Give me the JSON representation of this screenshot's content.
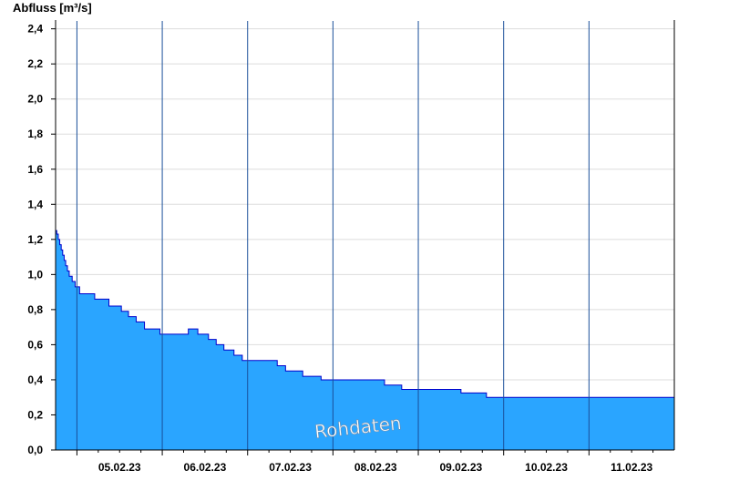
{
  "chart_data": {
    "type": "area",
    "ylabel": "Abfluss [m³/s]",
    "ylim": [
      0,
      2.45
    ],
    "y_ticks": [
      "0,0",
      "0,2",
      "0,4",
      "0,6",
      "0,8",
      "1,0",
      "1,2",
      "1,4",
      "1,6",
      "1,8",
      "2,0",
      "2,2",
      "2,4"
    ],
    "x_range": [
      "04.02.23 18:00",
      "11.02.23 24:00"
    ],
    "x_tick_labels": [
      "05.02.23",
      "06.02.23",
      "07.02.23",
      "08.02.23",
      "09.02.23",
      "10.02.23",
      "11.02.23"
    ],
    "grid": true,
    "watermark": "Rohdaten",
    "colors": {
      "fill": "#2aa5ff",
      "line": "#0000cc",
      "grid": "#dddddd",
      "day_separator": "#1a4f9a"
    },
    "series": [
      {
        "step": true,
        "points": [
          [
            "04.02.23 18:00",
            1.25
          ],
          [
            "04.02.23 18:20",
            1.23
          ],
          [
            "04.02.23 18:45",
            1.2
          ],
          [
            "04.02.23 19:10",
            1.17
          ],
          [
            "04.02.23 19:35",
            1.14
          ],
          [
            "04.02.23 20:00",
            1.11
          ],
          [
            "04.02.23 20:25",
            1.08
          ],
          [
            "04.02.23 20:50",
            1.05
          ],
          [
            "04.02.23 21:20",
            1.02
          ],
          [
            "04.02.23 21:50",
            0.99
          ],
          [
            "04.02.23 22:40",
            0.96
          ],
          [
            "04.02.23 23:30",
            0.93
          ],
          [
            "05.02.23 00:45",
            0.89
          ],
          [
            "05.02.23 05:00",
            0.86
          ],
          [
            "05.02.23 09:00",
            0.82
          ],
          [
            "05.02.23 12:30",
            0.79
          ],
          [
            "05.02.23 14:30",
            0.76
          ],
          [
            "05.02.23 16:40",
            0.73
          ],
          [
            "05.02.23 19:00",
            0.69
          ],
          [
            "05.02.23 23:20",
            0.66
          ],
          [
            "06.02.23 07:20",
            0.69
          ],
          [
            "06.02.23 10:00",
            0.66
          ],
          [
            "06.02.23 13:00",
            0.63
          ],
          [
            "06.02.23 15:10",
            0.6
          ],
          [
            "06.02.23 17:20",
            0.57
          ],
          [
            "06.02.23 20:10",
            0.54
          ],
          [
            "06.02.23 22:30",
            0.51
          ],
          [
            "07.02.23 08:20",
            0.48
          ],
          [
            "07.02.23 10:40",
            0.45
          ],
          [
            "07.02.23 15:30",
            0.42
          ],
          [
            "07.02.23 20:40",
            0.4
          ],
          [
            "08.02.23 14:30",
            0.37
          ],
          [
            "08.02.23 19:20",
            0.345
          ],
          [
            "09.02.23 12:00",
            0.325
          ],
          [
            "09.02.23 19:10",
            0.3
          ],
          [
            "11.02.23 24:00",
            0.3
          ]
        ]
      }
    ]
  }
}
